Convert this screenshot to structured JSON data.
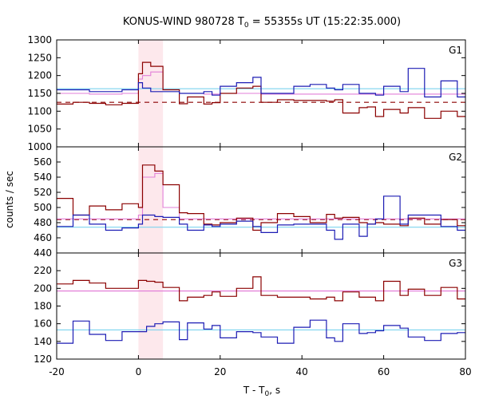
{
  "chart_data": {
    "type": "line",
    "title": "KONUS-WIND 980728 T",
    "title_sub": "0",
    "title_rest": " = 55355s UT (15:22:35.000)",
    "xlabel": "T - T",
    "xlabel_sub": "0",
    "xlabel_rest": ", s",
    "ylabel": "counts / sec",
    "xlim": [
      -20,
      80
    ],
    "xticks": [
      -20,
      0,
      20,
      40,
      60,
      80
    ],
    "xtick_labels": [
      "-20",
      "0",
      "20",
      "40",
      "60",
      "80"
    ],
    "highlight_interval": [
      0,
      6
    ],
    "colors": {
      "red": "#8b0000",
      "blue": "#1c1cb4",
      "pink": "#e27fd8",
      "cyan": "#7cd3ee",
      "band": "#fde8ec"
    },
    "panels": [
      {
        "label": "G1",
        "ylim": [
          1000,
          1300
        ],
        "yticks": [
          1000,
          1050,
          1100,
          1150,
          1200,
          1250,
          1300
        ],
        "ytick_labels": [
          "1000",
          "1050",
          "1100",
          "1150",
          "1200",
          "1250",
          "1300"
        ],
        "bin_edges": [
          -20,
          -16,
          -12,
          -8,
          -4,
          0,
          1,
          3,
          6,
          10,
          12,
          16,
          18,
          20,
          24,
          28,
          30,
          34,
          38,
          42,
          46,
          48,
          50,
          54,
          56,
          58,
          60,
          64,
          66,
          70,
          74,
          78,
          80
        ],
        "series": [
          {
            "color_key": "red",
            "values": [
              1120,
              1125,
              1122,
              1118,
              1122,
              1205,
              1237,
              1226,
              1160,
              1121,
              1140,
              1120,
              1124,
              1150,
              1165,
              1170,
              1125,
              1132,
              1130,
              1130,
              1128,
              1132,
              1095,
              1110,
              1112,
              1085,
              1105,
              1095,
              1110,
              1080,
              1100,
              1085
            ]
          },
          {
            "color_key": "blue",
            "values": [
              1160,
              1160,
              1155,
              1155,
              1160,
              1180,
              1165,
              1155,
              1155,
              1150,
              1150,
              1155,
              1145,
              1170,
              1180,
              1195,
              1150,
              1150,
              1170,
              1175,
              1165,
              1160,
              1175,
              1150,
              1150,
              1145,
              1170,
              1155,
              1220,
              1140,
              1185,
              1140
            ]
          }
        ],
        "fit_lines": [
          {
            "color_key": "cyan",
            "value": 1163,
            "dashed": false
          },
          {
            "color_key": "red",
            "value": 1125,
            "dashed": true
          }
        ],
        "source_curve": {
          "color_key": "pink",
          "values": [
            1150,
            1150,
            1148,
            1148,
            1150,
            1190,
            1200,
            1210,
            1160,
            1150,
            1150,
            1148,
            1148,
            1150,
            1150,
            1150,
            1148,
            1148,
            1148,
            1148,
            1148,
            1148,
            1148,
            1148,
            1148,
            1148,
            1148,
            1148,
            1148,
            1148,
            1148,
            1148
          ]
        }
      },
      {
        "label": "G2",
        "ylim": [
          440,
          580
        ],
        "yticks": [
          440,
          460,
          480,
          500,
          520,
          540,
          560
        ],
        "ytick_labels": [
          "440",
          "460",
          "480",
          "500",
          "520",
          "540",
          "560"
        ],
        "bin_edges": [
          -20,
          -16,
          -12,
          -8,
          -4,
          0,
          1,
          4,
          6,
          10,
          12,
          16,
          18,
          20,
          24,
          28,
          30,
          34,
          38,
          42,
          46,
          48,
          50,
          54,
          56,
          58,
          60,
          64,
          66,
          70,
          74,
          78,
          80
        ],
        "series": [
          {
            "color_key": "red",
            "values": [
              512,
              490,
              502,
              497,
              505,
              500,
              556,
              548,
              530,
              493,
              492,
              478,
              477,
              480,
              486,
              470,
              480,
              492,
              488,
              480,
              491,
              486,
              487,
              480,
              478,
              480,
              478,
              476,
              486,
              478,
              484,
              476
            ]
          },
          {
            "color_key": "blue",
            "values": [
              475,
              490,
              478,
              470,
              473,
              478,
              490,
              488,
              487,
              478,
              470,
              477,
              475,
              478,
              482,
              475,
              467,
              477,
              478,
              478,
              470,
              458,
              478,
              462,
              478,
              485,
              515,
              478,
              490,
              490,
              475,
              470
            ]
          }
        ],
        "fit_lines": [
          {
            "color_key": "cyan",
            "value": 474,
            "dashed": false
          },
          {
            "color_key": "red",
            "value": 484,
            "dashed": true
          }
        ],
        "source_curve": {
          "color_key": "pink",
          "values": [
            485,
            485,
            485,
            485,
            485,
            490,
            540,
            545,
            500,
            485,
            485,
            485,
            485,
            485,
            485,
            485,
            485,
            485,
            485,
            485,
            485,
            485,
            485,
            485,
            485,
            485,
            485,
            485,
            485,
            485,
            485,
            485
          ]
        }
      },
      {
        "label": "G3",
        "ylim": [
          120,
          240
        ],
        "yticks": [
          120,
          140,
          160,
          180,
          200,
          220
        ],
        "ytick_labels": [
          "120",
          "140",
          "160",
          "180",
          "200",
          "220"
        ],
        "bin_edges": [
          -20,
          -16,
          -12,
          -8,
          -4,
          0,
          2,
          4,
          6,
          10,
          12,
          16,
          18,
          20,
          24,
          28,
          30,
          34,
          38,
          42,
          46,
          48,
          50,
          54,
          56,
          58,
          60,
          64,
          66,
          70,
          74,
          78,
          80
        ],
        "series": [
          {
            "color_key": "red",
            "values": [
              205,
              209,
              206,
              200,
              200,
              209,
              208,
              207,
              201,
              186,
              190,
              192,
              196,
              191,
              200,
              213,
              192,
              190,
              190,
              188,
              190,
              186,
              196,
              190,
              190,
              186,
              208,
              192,
              199,
              192,
              201,
              188
            ]
          },
          {
            "color_key": "blue",
            "values": [
              138,
              163,
              148,
              141,
              151,
              151,
              157,
              160,
              162,
              142,
              161,
              154,
              158,
              144,
              151,
              150,
              145,
              138,
              156,
              164,
              144,
              140,
              160,
              149,
              150,
              152,
              158,
              155,
              145,
              141,
              149,
              150
            ]
          }
        ],
        "fit_lines": [
          {
            "color_key": "cyan",
            "value": 153,
            "dashed": false
          },
          {
            "color_key": "pink",
            "value": 197,
            "dashed": false
          }
        ],
        "source_curve": null
      }
    ]
  }
}
